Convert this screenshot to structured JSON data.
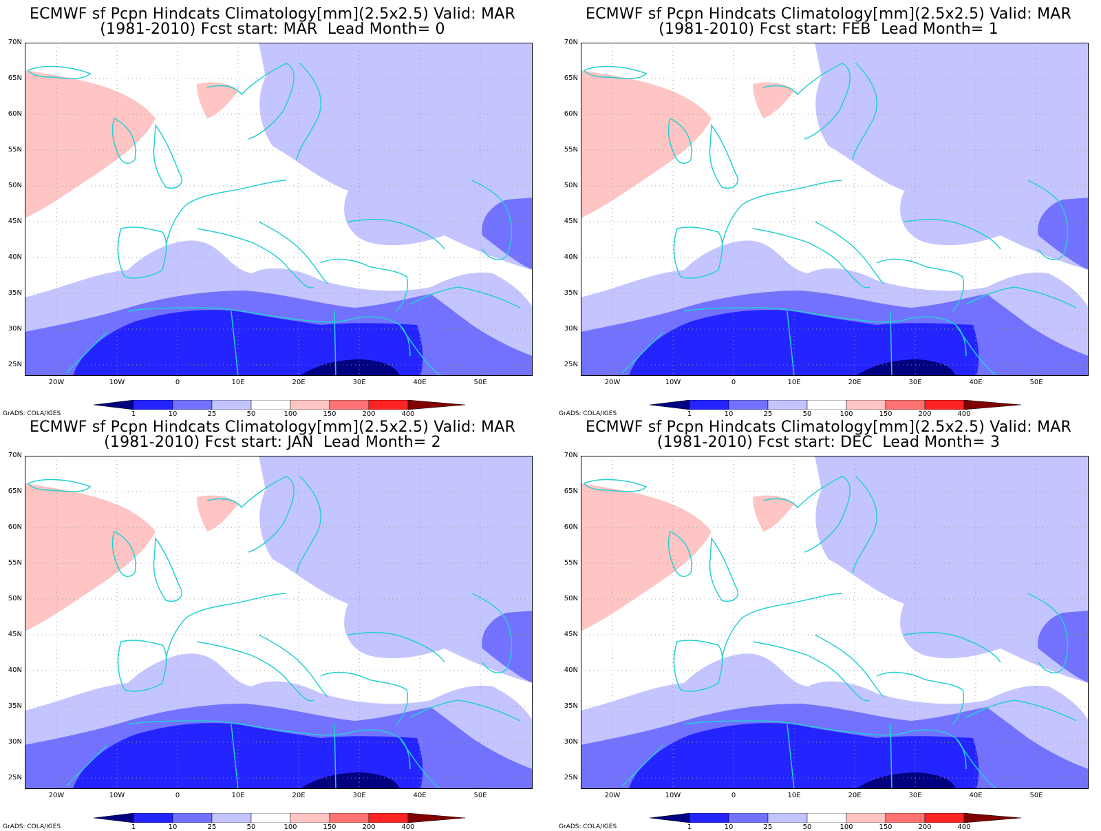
{
  "colors": {
    "c1": "#000080",
    "c2": "#2424ff",
    "c3": "#7272ff",
    "c4": "#c4c4ff",
    "c5": "#ffffff",
    "c6": "#ffc4c4",
    "c7": "#ff7272",
    "c8": "#ff2424",
    "c9": "#800000",
    "coast": "#24d0d0"
  },
  "credit": "GrADS: COLA/IGES",
  "colorbar_labels": [
    "1",
    "10",
    "25",
    "50",
    "100",
    "150",
    "200",
    "400"
  ],
  "lat_labels": [
    "70N",
    "65N",
    "60N",
    "55N",
    "50N",
    "45N",
    "40N",
    "35N",
    "30N",
    "25N"
  ],
  "lon_labels": [
    "20W",
    "10W",
    "0",
    "10E",
    "20E",
    "30E",
    "40E",
    "50E"
  ],
  "panels": [
    {
      "title1": "ECMWF sf Pcpn Hindcats Climatology[mm](2.5x2.5) Valid: MAR",
      "title2": "(1981-2010) Fcst start: MAR  Lead Month= 0"
    },
    {
      "title1": "ECMWF sf Pcpn Hindcats Climatology[mm](2.5x2.5) Valid: MAR",
      "title2": "(1981-2010) Fcst start: FEB  Lead Month= 1"
    },
    {
      "title1": "ECMWF sf Pcpn Hindcats Climatology[mm](2.5x2.5) Valid: MAR",
      "title2": "(1981-2010) Fcst start: JAN  Lead Month= 2"
    },
    {
      "title1": "ECMWF sf Pcpn Hindcats Climatology[mm](2.5x2.5) Valid: MAR",
      "title2": "(1981-2010) Fcst start: DEC  Lead Month= 3"
    }
  ]
}
